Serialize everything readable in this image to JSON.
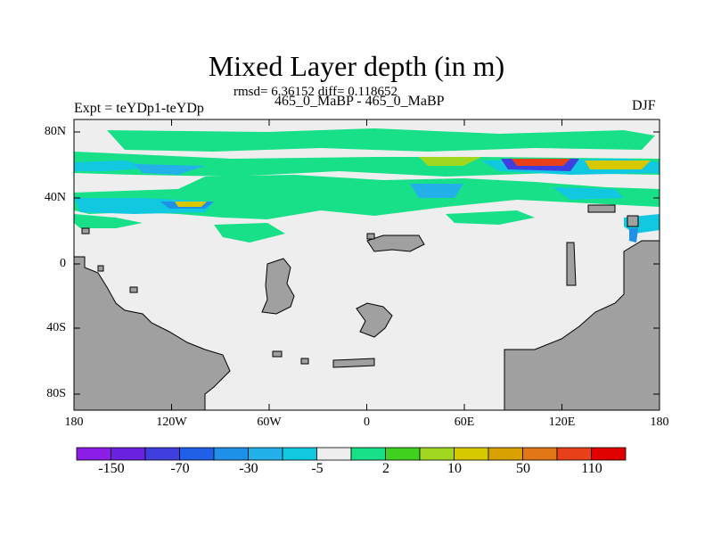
{
  "header": {
    "title": "Mixed Layer depth (in m)",
    "stats": "rmsd= 6.36152 diff= 0.118652",
    "experiment": "Expt = teYDp1-teYDp",
    "period": "465_0_MaBP - 465_0_MaBP",
    "season": "DJF"
  },
  "axes": {
    "y_ticks": [
      "80N",
      "40N",
      "0",
      "40S",
      "80S"
    ],
    "x_ticks": [
      "180",
      "120W",
      "60W",
      "0",
      "60E",
      "120E",
      "180"
    ]
  },
  "colorbar": {
    "labels": [
      "-150",
      "-70",
      "-30",
      "-5",
      "2",
      "10",
      "50",
      "110"
    ],
    "colors": [
      "#8a1ee6",
      "#6a22e0",
      "#3f3fdf",
      "#2060e8",
      "#1e90e8",
      "#24b0e8",
      "#10c8e0",
      "#eeeeee",
      "#18e088",
      "#40d020",
      "#a0d820",
      "#d8c800",
      "#d8a000",
      "#e07818",
      "#e84018",
      "#e00000"
    ]
  },
  "colors": {
    "land": "#a0a0a0",
    "ocean_neutral": "#eeeeee"
  }
}
